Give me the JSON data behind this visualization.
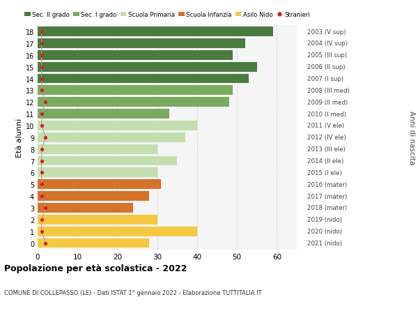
{
  "ages": [
    18,
    17,
    16,
    15,
    14,
    13,
    12,
    11,
    10,
    9,
    8,
    7,
    6,
    5,
    4,
    3,
    2,
    1,
    0
  ],
  "values": [
    59,
    52,
    49,
    55,
    53,
    49,
    48,
    33,
    40,
    37,
    30,
    35,
    30,
    31,
    28,
    24,
    30,
    40,
    28
  ],
  "stranieri": [
    1,
    1,
    1,
    1,
    1,
    1,
    2,
    1,
    1,
    2,
    1,
    1,
    1,
    1,
    1,
    2,
    1,
    1,
    2
  ],
  "right_labels": [
    "2003 (V sup)",
    "2004 (IV sup)",
    "2005 (III sup)",
    "2006 (II sup)",
    "2007 (I sup)",
    "2008 (III med)",
    "2009 (II med)",
    "2010 (I med)",
    "2011 (V ele)",
    "2012 (IV ele)",
    "2013 (III ele)",
    "2014 (II ele)",
    "2015 (I ele)",
    "2016 (mater)",
    "2017 (mater)",
    "2018 (mater)",
    "2019 (nido)",
    "2020 (nido)",
    "2021 (nido)"
  ],
  "bar_colors": [
    "#4a7c3f",
    "#4a7c3f",
    "#4a7c3f",
    "#4a7c3f",
    "#4a7c3f",
    "#7aaa5e",
    "#7aaa5e",
    "#7aaa5e",
    "#c5deb0",
    "#c5deb0",
    "#c5deb0",
    "#c5deb0",
    "#c5deb0",
    "#d4732a",
    "#d4732a",
    "#d4732a",
    "#f5c842",
    "#f5c842",
    "#f5c842"
  ],
  "legend_labels": [
    "Sec. II grado",
    "Sec. I grado",
    "Scuola Primaria",
    "Scuola Infanzia",
    "Asilo Nido",
    "Stranieri"
  ],
  "legend_colors": [
    "#4a7c3f",
    "#7aaa5e",
    "#c5deb0",
    "#d4732a",
    "#f5c842",
    "#cc2222"
  ],
  "ylabel": "Età alunni",
  "right_ylabel": "Anni di nascita",
  "title": "Popolazione per età scolastica - 2022",
  "subtitle": "COMUNE DI COLLEPASSO (LE) - Dati ISTAT 1° gennaio 2022 - Elaborazione TUTTITALIA.IT",
  "xlim": [
    0,
    65
  ],
  "stranieri_color": "#cc2222",
  "stranieri_line_color": "#c89090",
  "bg_color": "#f5f5f5",
  "grid_color": "#cccccc"
}
